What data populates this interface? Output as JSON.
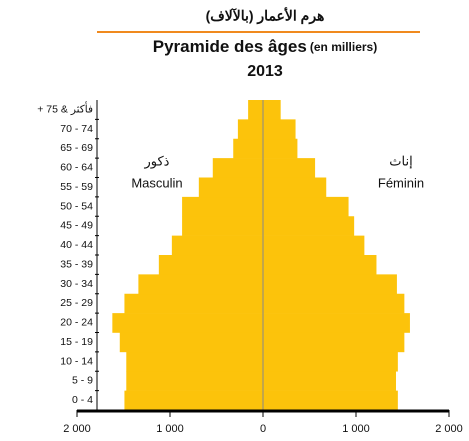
{
  "chart_data": {
    "type": "pyramid",
    "title_ar": "هرم الأعمار (بالآلاف)",
    "title": "Pyramide des âges",
    "subtitle_unit": "(en milliers)",
    "year": "2013",
    "annotations": {
      "male_ar": "ذكور",
      "male": "Masculin",
      "female_ar": "إناث",
      "female": "Féminin"
    },
    "categories": [
      "0 - 4",
      "5 - 9",
      "10 - 14",
      "15 - 19",
      "20 - 24",
      "25 - 29",
      "30 - 34",
      "35 - 39",
      "40 - 44",
      "45 - 49",
      "50 - 54",
      "55 - 59",
      "60 - 64",
      "65 - 69",
      "70 - 74",
      "+ 75 & فأكثر"
    ],
    "series": [
      {
        "name": "Masculin",
        "color": "#fcc30b",
        "side": "left",
        "values": [
          1490,
          1470,
          1470,
          1540,
          1620,
          1490,
          1340,
          1120,
          980,
          870,
          870,
          690,
          540,
          320,
          270,
          160
        ]
      },
      {
        "name": "Féminin",
        "color": "#fcc30b",
        "side": "right",
        "values": [
          1450,
          1430,
          1450,
          1520,
          1580,
          1520,
          1440,
          1220,
          1090,
          980,
          920,
          680,
          560,
          370,
          350,
          190
        ]
      }
    ],
    "xlim": [
      -2000,
      2000
    ],
    "xticks": [
      {
        "value": -2000,
        "label": "2 000"
      },
      {
        "value": -1000,
        "label": "1 000"
      },
      0,
      {
        "value": 1000,
        "label": "1 000"
      },
      {
        "value": 2000,
        "label": "2 000"
      }
    ]
  }
}
